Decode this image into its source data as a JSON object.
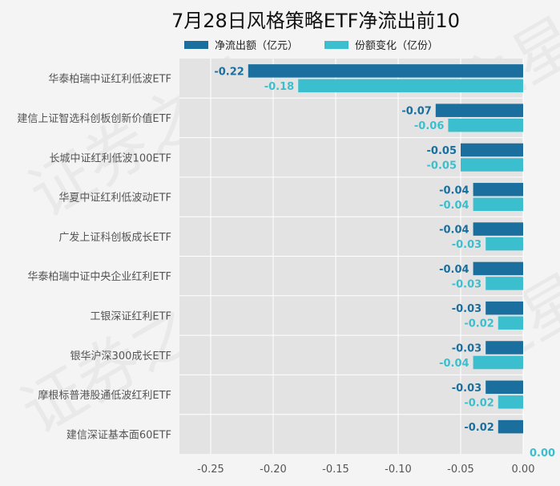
{
  "chart_data": {
    "type": "bar",
    "orientation": "horizontal",
    "title": "7月28日风格策略ETF净流出前10",
    "categories": [
      "华泰柏瑞中证红利低波ETF",
      "建信上证智选科创板创新价值ETF",
      "长城中证红利低波100ETF",
      "华夏中证红利低波动ETF",
      "广发上证科创板成长ETF",
      "华泰柏瑞中证中央企业红利ETF",
      "工银深证红利ETF",
      "银华沪深300成长ETF",
      "摩根标普港股通低波红利ETF",
      "建信深证基本面60ETF"
    ],
    "series": [
      {
        "name": "净流出额（亿元）",
        "color": "#1a6f9e",
        "values": [
          -0.22,
          -0.07,
          -0.05,
          -0.04,
          -0.04,
          -0.04,
          -0.03,
          -0.03,
          -0.03,
          -0.02
        ],
        "labels": [
          "-0.22",
          "-0.07",
          "-0.05",
          "-0.04",
          "-0.04",
          "-0.04",
          "-0.03",
          "-0.03",
          "-0.03",
          "-0.02"
        ]
      },
      {
        "name": "份额变化（亿份）",
        "color": "#3bbfcf",
        "values": [
          -0.18,
          -0.06,
          -0.05,
          -0.04,
          -0.03,
          -0.03,
          -0.02,
          -0.04,
          -0.02,
          0.0
        ],
        "labels": [
          "-0.18",
          "-0.06",
          "-0.05",
          "-0.04",
          "-0.03",
          "-0.03",
          "-0.02",
          "-0.04",
          "-0.02",
          "0.00"
        ]
      }
    ],
    "xlim": [
      -0.275,
      0.0
    ],
    "xticks": [
      -0.25,
      -0.2,
      -0.15,
      -0.1,
      -0.05,
      0.0
    ],
    "xtick_labels": [
      "-0.25",
      "-0.20",
      "-0.15",
      "-0.10",
      "-0.05",
      "0.00"
    ],
    "xlabel": "",
    "ylabel": "",
    "grid": true,
    "legend_position": "top-center",
    "watermark": "证券之星"
  }
}
